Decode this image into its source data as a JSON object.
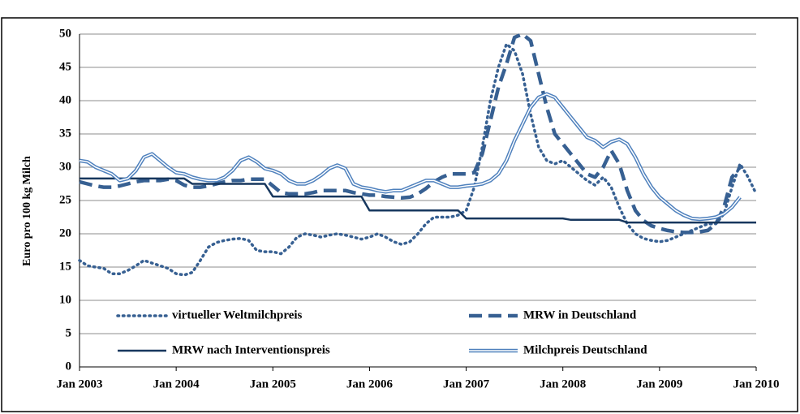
{
  "chart_data": {
    "type": "line",
    "y_label": "Euro pro 100 kg Milch",
    "categories": [
      "Jan 2003",
      null,
      null,
      null,
      null,
      null,
      null,
      null,
      null,
      null,
      null,
      null,
      "Jan 2004",
      null,
      null,
      null,
      null,
      null,
      null,
      null,
      null,
      null,
      null,
      null,
      "Jan 2005",
      null,
      null,
      null,
      null,
      null,
      null,
      null,
      null,
      null,
      null,
      null,
      "Jan 2006",
      null,
      null,
      null,
      null,
      null,
      null,
      null,
      null,
      null,
      null,
      null,
      "Jan 2007",
      null,
      null,
      null,
      null,
      null,
      null,
      null,
      null,
      null,
      null,
      null,
      "Jan 2008",
      null,
      null,
      null,
      null,
      null,
      null,
      null,
      null,
      null,
      null,
      null,
      "Jan 2009",
      null,
      null,
      null,
      null,
      null,
      null,
      null,
      null,
      null,
      null,
      null,
      "Jan 2010"
    ],
    "ylim": [
      0,
      50
    ],
    "yticks": [
      0,
      5,
      10,
      15,
      20,
      25,
      30,
      35,
      40,
      45,
      50
    ],
    "grid": true,
    "series": [
      {
        "name": "virtueller Weltmilchpreis",
        "color": "#376092",
        "style": "dotted",
        "values": [
          16,
          15.2,
          15,
          14.8,
          14,
          14,
          14.5,
          15.2,
          16,
          15.6,
          15.2,
          14.8,
          14,
          13.8,
          14.2,
          16,
          18,
          18.7,
          19,
          19.2,
          19.3,
          19,
          17.5,
          17.3,
          17.3,
          17,
          18,
          19.5,
          20,
          19.8,
          19.5,
          19.8,
          20,
          19.8,
          19.5,
          19.2,
          19.5,
          20,
          19.5,
          18.8,
          18.4,
          18.8,
          20,
          21.5,
          22.5,
          22.5,
          22.5,
          22.8,
          23.5,
          27,
          33,
          40,
          45,
          48.5,
          47.5,
          44,
          38,
          33,
          31,
          30.5,
          31,
          30,
          29,
          28,
          27.3,
          28.5,
          27,
          24,
          21.5,
          20,
          19.3,
          19,
          18.8,
          19,
          19.5,
          20,
          20.5,
          21,
          21.5,
          21.5,
          23,
          27,
          30.5,
          28.5,
          26
        ]
      },
      {
        "name": "MRW in Deutschland",
        "color": "#376092",
        "style": "dashed",
        "values": [
          27.8,
          27.5,
          27.2,
          27,
          27,
          27.2,
          27.5,
          27.8,
          28,
          28,
          28,
          28.2,
          28,
          27.3,
          27,
          27,
          27.2,
          27.5,
          27.8,
          28,
          28,
          28.2,
          28.2,
          28.2,
          27.2,
          26.2,
          26,
          26,
          26,
          26.2,
          26.5,
          26.5,
          26.5,
          26.5,
          26.2,
          26,
          25.8,
          25.8,
          25.6,
          25.5,
          25.4,
          25.5,
          26,
          26.8,
          27.8,
          28.5,
          29,
          29,
          29,
          29.2,
          32,
          37,
          42,
          45.5,
          49.5,
          50,
          49,
          44,
          39,
          35,
          33.5,
          32,
          30.5,
          29,
          28.5,
          30,
          32.5,
          30.5,
          26.5,
          23.5,
          22,
          21.2,
          20.8,
          20.5,
          20.3,
          20.2,
          20.2,
          20.3,
          20.5,
          21.5,
          24,
          28.5,
          30,
          null,
          null
        ]
      },
      {
        "name": "MRW nach Interventionspreis",
        "color": "#17375e",
        "style": "solid",
        "values": [
          28.3,
          28.3,
          28.3,
          28.3,
          28.3,
          28.3,
          28.3,
          28.3,
          28.3,
          28.3,
          28.3,
          28.3,
          28.3,
          28.3,
          27.5,
          27.5,
          27.5,
          27.5,
          27.5,
          27.5,
          27.5,
          27.5,
          27.5,
          27.5,
          25.6,
          25.6,
          25.6,
          25.6,
          25.6,
          25.6,
          25.6,
          25.6,
          25.6,
          25.6,
          25.6,
          25.6,
          23.5,
          23.5,
          23.5,
          23.5,
          23.5,
          23.5,
          23.5,
          23.5,
          23.5,
          23.5,
          23.5,
          23.5,
          22.3,
          22.3,
          22.3,
          22.3,
          22.3,
          22.3,
          22.3,
          22.3,
          22.3,
          22.3,
          22.3,
          22.3,
          22.3,
          22.1,
          22.1,
          22.1,
          22.1,
          22.1,
          22.1,
          22.1,
          21.7,
          21.7,
          21.7,
          21.7,
          21.7,
          21.7,
          21.7,
          21.7,
          21.7,
          21.7,
          21.7,
          21.7,
          21.7,
          21.7,
          21.7,
          21.7,
          21.7
        ]
      },
      {
        "name": "Milchpreis Deutschland",
        "color": "#4f81bd",
        "style": "double",
        "values": [
          31,
          30.8,
          30,
          29.5,
          29,
          28,
          28.3,
          29.5,
          31.5,
          32,
          31,
          30,
          29.2,
          29,
          28.5,
          28.2,
          28,
          28,
          28.5,
          29.5,
          31,
          31.5,
          30.8,
          29.8,
          29.5,
          29,
          28,
          27.5,
          27.5,
          28,
          28.8,
          29.8,
          30.3,
          29.8,
          27.5,
          27,
          26.8,
          26.5,
          26.3,
          26.5,
          26.5,
          27,
          27.5,
          28,
          28,
          27.5,
          27,
          27,
          27.2,
          27.3,
          27.5,
          28,
          29,
          31,
          34,
          36.5,
          39,
          40.5,
          41,
          40.5,
          39,
          37.5,
          36,
          34.5,
          34,
          33,
          33.8,
          34.2,
          33.5,
          31.5,
          29,
          27,
          25.5,
          24.5,
          23.5,
          22.8,
          22.3,
          22.2,
          22.3,
          22.5,
          23,
          24,
          25.5,
          null,
          null
        ]
      }
    ]
  }
}
